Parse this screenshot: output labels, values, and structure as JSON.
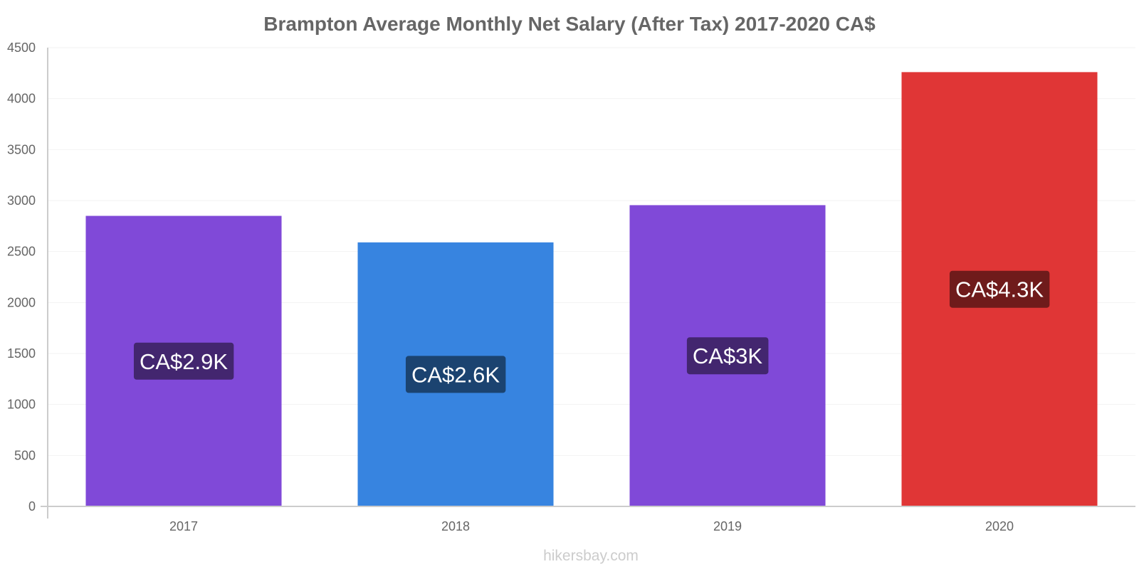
{
  "chart_data": {
    "type": "bar",
    "title": "Brampton Average Monthly Net Salary (After Tax) 2017-2020 CA$",
    "categories": [
      "2017",
      "2018",
      "2019",
      "2020"
    ],
    "values": [
      2850,
      2590,
      2955,
      4260
    ],
    "data_labels": [
      "CA$2.9K",
      "CA$2.6K",
      "CA$3K",
      "CA$4.3K"
    ],
    "bar_colors": [
      "#8049d8",
      "#3784e0",
      "#8049d8",
      "#e03636"
    ],
    "label_bg_colors": [
      "#43266f",
      "#1b4370",
      "#43266f",
      "#6f1b1b"
    ],
    "ylim": [
      0,
      4500
    ],
    "yticks": [
      0,
      500,
      1000,
      1500,
      2000,
      2500,
      3000,
      3500,
      4000,
      4500
    ],
    "grid": true,
    "legend": "none"
  },
  "watermark": "hikersbay.com"
}
